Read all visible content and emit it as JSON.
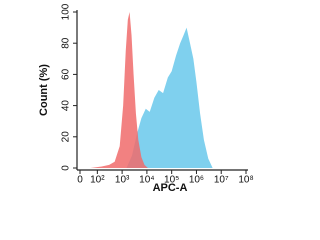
{
  "chart_data": {
    "type": "area",
    "xlabel": "APC-A",
    "ylabel": "Count (%)",
    "xscale": "symlog",
    "xlim": [
      0,
      100000000
    ],
    "ylim": [
      0,
      100
    ],
    "xticks": [
      0,
      {
        "value": 100,
        "label": "10²"
      },
      {
        "value": 1000,
        "label": "10³"
      },
      {
        "value": 10000,
        "label": "10⁴"
      },
      {
        "value": 100000,
        "label": "10⁵"
      },
      {
        "value": 1000000,
        "label": "10⁶"
      },
      {
        "value": 10000000,
        "label": "10⁷"
      },
      {
        "value": 100000000,
        "label": "10⁸"
      }
    ],
    "yticks": [
      0,
      20,
      40,
      60,
      80,
      100
    ],
    "series": [
      {
        "color": "#7fd0ee",
        "x": [
          1500,
          2500,
          4000,
          6000,
          9000,
          13000,
          20000,
          30000,
          45000,
          70000,
          100000,
          150000,
          220000,
          300000,
          400000,
          550000,
          750000,
          1000000,
          1400000,
          2000000,
          3000000,
          4500000
        ],
        "values": [
          0,
          8,
          22,
          32,
          38,
          36,
          45,
          50,
          48,
          58,
          62,
          72,
          80,
          85,
          90,
          80,
          70,
          55,
          35,
          18,
          6,
          0
        ]
      },
      {
        "color": "#f06b6b",
        "x": [
          60,
          150,
          300,
          500,
          800,
          1100,
          1400,
          1700,
          2000,
          2400,
          2900,
          3600,
          4500,
          6000,
          8000,
          11000
        ],
        "values": [
          0,
          1,
          2,
          4,
          14,
          40,
          75,
          95,
          100,
          85,
          60,
          35,
          18,
          7,
          2,
          0
        ]
      }
    ]
  }
}
